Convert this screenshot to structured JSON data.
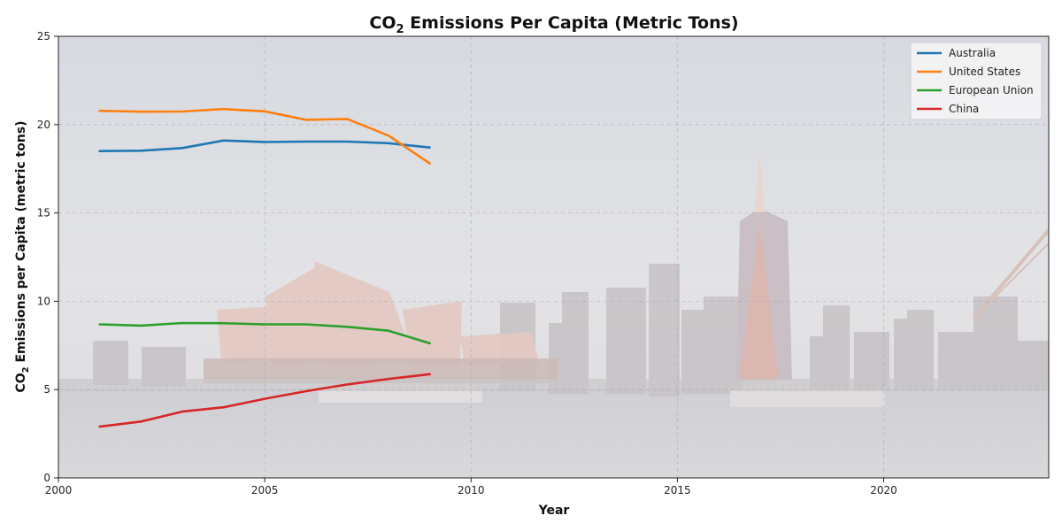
{
  "chart_data": {
    "type": "line",
    "title_main": "CO",
    "title_sub": "2",
    "title_rest": " Emissions Per Capita (Metric Tons)",
    "xlabel": "Year",
    "ylabel_main": "CO",
    "ylabel_sub": "2",
    "ylabel_rest": " Emissions per Capita (metric tons)",
    "xlim": [
      2000,
      2024
    ],
    "ylim": [
      0,
      25
    ],
    "xticks": [
      "2000",
      "2005",
      "2010",
      "2015",
      "2020"
    ],
    "yticks": [
      "0",
      "5",
      "10",
      "15",
      "20",
      "25"
    ],
    "grid": true,
    "legend_position": "top-right",
    "background": "harbor city skyline photo at dusk",
    "x": [
      2001,
      2002,
      2003,
      2004,
      2005,
      2006,
      2007,
      2008,
      2009
    ],
    "series": [
      {
        "name": "Australia",
        "color": "#1f77b4",
        "values": [
          18.5,
          18.52,
          18.67,
          19.1,
          19.02,
          19.04,
          19.04,
          18.95,
          18.7
        ]
      },
      {
        "name": "United States",
        "color": "#ff7f0e",
        "values": [
          20.78,
          20.73,
          20.74,
          20.88,
          20.75,
          20.27,
          20.32,
          19.38,
          17.8
        ]
      },
      {
        "name": "European Union",
        "color": "#2ca02c",
        "values": [
          8.69,
          8.62,
          8.77,
          8.76,
          8.69,
          8.69,
          8.55,
          8.33,
          7.62
        ]
      },
      {
        "name": "China",
        "color": "#d62728",
        "values": [
          2.9,
          3.19,
          3.75,
          4.0,
          4.48,
          4.91,
          5.29,
          5.6,
          5.87
        ]
      }
    ]
  }
}
